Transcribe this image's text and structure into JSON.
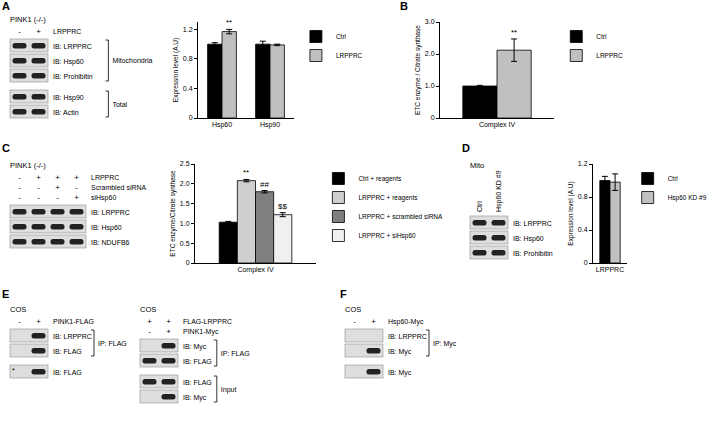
{
  "panel_letters": [
    "A",
    "B",
    "C",
    "D",
    "E",
    "F"
  ],
  "chart_data": [
    {
      "type": "bar",
      "y_label": "Expression level (A.U)",
      "categories": [
        "Hsp60",
        "Hsp90"
      ],
      "series": [
        {
          "name": "Ctrl",
          "color": "#000000",
          "values": [
            1.0,
            1.0
          ],
          "errors": [
            0.02,
            0.04
          ]
        },
        {
          "name": "LRPPRC",
          "color": "#c0c0c0",
          "values": [
            1.17,
            0.99
          ],
          "errors": [
            0.03,
            0.01
          ]
        }
      ],
      "ylim": [
        0,
        1.3
      ],
      "yticks": [
        0,
        0.4,
        0.8,
        1.2
      ],
      "legend": "right",
      "grid": false,
      "annotations": [
        {
          "text": "**",
          "series": 1,
          "category": 0
        }
      ]
    },
    {
      "type": "bar",
      "y_label": "ETC enzyme / Citrate synthase",
      "categories": [
        "Complex IV"
      ],
      "series": [
        {
          "name": "Ctrl",
          "color": "#000000",
          "values": [
            1.0
          ],
          "errors": [
            0.02
          ]
        },
        {
          "name": "LRPPRC",
          "color": "#c0c0c0",
          "values": [
            2.12
          ],
          "errors": [
            0.35
          ]
        }
      ],
      "ylim": [
        0,
        3
      ],
      "yticks": [
        0,
        {
          "value": 1,
          "label": "1.0"
        },
        {
          "value": 2,
          "label": "2.0"
        },
        {
          "value": 3,
          "label": "3.0"
        }
      ],
      "legend": "right",
      "grid": false,
      "annotations": [
        {
          "text": "**",
          "series": 1,
          "category": 0
        }
      ]
    },
    {
      "type": "bar",
      "y_label": "ETC enzyme/Citrate synthase",
      "categories": [
        "Complex IV"
      ],
      "series": [
        {
          "name": "Ctrl + reagents",
          "color": "#000000",
          "values": [
            1.03
          ],
          "errors": [
            0.02
          ]
        },
        {
          "name": "LRPPRC + reagents",
          "color": "#cfcfcf",
          "values": [
            2.08
          ],
          "errors": [
            0.03
          ]
        },
        {
          "name": "LRPPRC + scrambled siRNA",
          "color": "#7f7f7f",
          "values": [
            1.8
          ],
          "errors": [
            0.03
          ]
        },
        {
          "name": "LRPPRC + siHsp60",
          "color": "#f0f0f0",
          "values": [
            1.22
          ],
          "errors": [
            0.05
          ]
        }
      ],
      "ylim": [
        0,
        2.5
      ],
      "yticks": [
        0,
        0.5,
        {
          "value": 1,
          "label": "1.0"
        },
        1.5,
        {
          "value": 2,
          "label": "2.0"
        },
        2.5
      ],
      "legend": "right",
      "grid": false,
      "annotations": [
        {
          "text": "**",
          "series": 1,
          "category": 0
        },
        {
          "text": "##",
          "series": 2,
          "category": 0
        },
        {
          "text": "$$",
          "series": 3,
          "category": 0
        }
      ]
    },
    {
      "type": "bar",
      "y_label": "Expression level (A.U)",
      "categories": [
        "LRPPRC"
      ],
      "series": [
        {
          "name": "Ctrl",
          "color": "#000000",
          "values": [
            1.0
          ],
          "errors": [
            0.05
          ]
        },
        {
          "name": "Hsp60 KD #9",
          "color": "#c0c0c0",
          "values": [
            0.98
          ],
          "errors": [
            0.1
          ]
        }
      ],
      "ylim": [
        0,
        1.2
      ],
      "yticks": [
        0,
        0.4,
        0.8,
        1.2
      ],
      "legend": "right",
      "grid": false
    }
  ],
  "blots": [
    {
      "title": "PINK1 (-/-)",
      "headers": [
        {
          "label": "LRPPRC",
          "marks": [
            "-",
            "+"
          ]
        }
      ],
      "sections": [
        {
          "label": "Mitochondria",
          "rows": [
            {
              "label": "IB: LRPPRC",
              "bands": [
                true,
                true
              ]
            },
            {
              "label": "IB: Hsp60",
              "bands": [
                true,
                true
              ]
            },
            {
              "label": "IB: Prohibitin",
              "bands": [
                true,
                true
              ]
            }
          ]
        },
        {
          "label": "Total",
          "rows": [
            {
              "label": "IB: Hsp90",
              "bands": [
                true,
                true
              ]
            },
            {
              "label": "IB: Actin",
              "bands": [
                true,
                true
              ]
            }
          ]
        }
      ]
    },
    {
      "title": "PINK1 (-/-)",
      "headers": [
        {
          "label": "LRPPRC",
          "marks": [
            "-",
            "+",
            "+",
            "+"
          ]
        },
        {
          "label": "Scrambled siRNA",
          "marks": [
            "-",
            "-",
            "+",
            "-"
          ]
        },
        {
          "label": "siHsp60",
          "marks": [
            "-",
            "-",
            "-",
            "+"
          ]
        }
      ],
      "sections": [
        {
          "rows": [
            {
              "label": "IB: LRPPRC",
              "bands": [
                true,
                true,
                true,
                true
              ]
            },
            {
              "label": "IB: Hsp60",
              "bands": [
                true,
                true,
                true,
                true
              ]
            },
            {
              "label": "IB: NDUFB6",
              "bands": [
                true,
                true,
                true,
                true
              ]
            }
          ]
        }
      ]
    },
    {
      "title": "Mito",
      "lane_labels": [
        "Ctrl",
        "Hsp60 KD #9"
      ],
      "sections": [
        {
          "rows": [
            {
              "label": "IB: LRPPRC",
              "bands": [
                true,
                true
              ]
            },
            {
              "label": "IB: Hsp60",
              "bands": [
                true,
                true
              ]
            },
            {
              "label": "IB: Prohibitin",
              "bands": [
                true,
                true
              ]
            }
          ]
        }
      ]
    },
    {
      "title": "COS",
      "headers": [
        {
          "label": "PINK1-FLAG",
          "marks": [
            "-",
            "+"
          ]
        }
      ],
      "sections": [
        {
          "label": "IP: FLAG",
          "rows": [
            {
              "label": "IB: LRPPRC",
              "bands": [
                false,
                true
              ]
            },
            {
              "label": "IB: FLAG",
              "bands": [
                false,
                true
              ]
            }
          ]
        },
        {
          "rows": [
            {
              "label": "IB: FLAG",
              "bands": [
                false,
                true
              ],
              "lane_texts": [
                "*",
                null
              ]
            }
          ]
        }
      ]
    },
    {
      "title": "COS",
      "headers": [
        {
          "label": "FLAG-LRPPRC",
          "marks": [
            "+",
            "+"
          ]
        },
        {
          "label": "PINK1-Myc",
          "marks": [
            "-",
            "+"
          ]
        }
      ],
      "sections": [
        {
          "label": "IP: FLAG",
          "rows": [
            {
              "label": "IB: Myc",
              "bands": [
                false,
                true
              ]
            },
            {
              "label": "IB: FLAG",
              "bands": [
                true,
                true
              ]
            }
          ]
        },
        {
          "label": "Input",
          "rows": [
            {
              "label": "IB: FLAG",
              "bands": [
                true,
                true
              ]
            },
            {
              "label": "IB: Myc",
              "bands": [
                false,
                true
              ]
            }
          ]
        }
      ]
    },
    {
      "title": "COS",
      "headers": [
        {
          "label": "Hsp60-Myc",
          "marks": [
            "-",
            "+"
          ]
        }
      ],
      "sections": [
        {
          "label": "IP: Myc",
          "rows": [
            {
              "label": "IB: LRPPRC",
              "bands": [
                false,
                false
              ]
            },
            {
              "label": "IB: Myc",
              "bands": [
                false,
                true
              ]
            }
          ]
        },
        {
          "rows": [
            {
              "label": "IB: Myc",
              "bands": [
                false,
                true
              ]
            }
          ]
        }
      ]
    }
  ]
}
